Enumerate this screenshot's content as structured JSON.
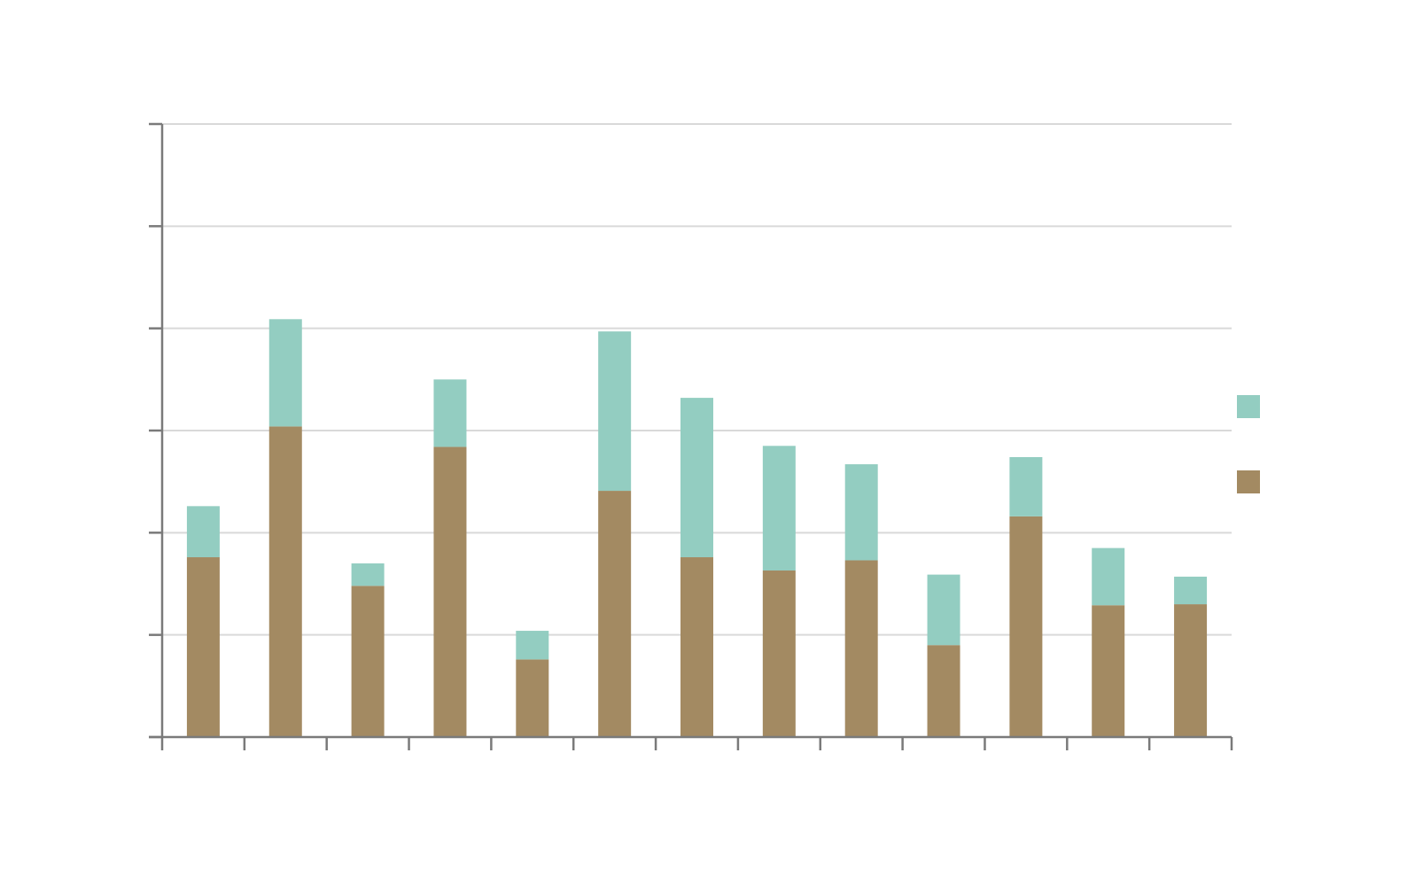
{
  "chart_data": {
    "type": "bar",
    "stacked": true,
    "title": "",
    "xlabel": "",
    "ylabel": "",
    "categories": [
      "",
      "",
      "",
      "",
      "",
      "",
      "",
      "",
      "",
      "",
      "",
      "",
      ""
    ],
    "ylim": [
      0,
      6
    ],
    "y_ticks": [
      0,
      1,
      2,
      3,
      4,
      5,
      6
    ],
    "grid": true,
    "legend": "right",
    "series": [
      {
        "color": "#a38a62",
        "values": [
          1.76,
          3.04,
          1.48,
          2.84,
          0.76,
          2.41,
          1.76,
          1.63,
          1.73,
          0.9,
          2.16,
          1.29,
          1.3
        ]
      },
      {
        "color": "#93cdc1",
        "values": [
          0.5,
          1.05,
          0.22,
          0.66,
          0.28,
          1.56,
          1.56,
          1.22,
          0.94,
          0.69,
          0.58,
          0.56,
          0.27
        ]
      }
    ],
    "axis_color": "#7a7a7a",
    "grid_color": "#d9d9d9"
  }
}
